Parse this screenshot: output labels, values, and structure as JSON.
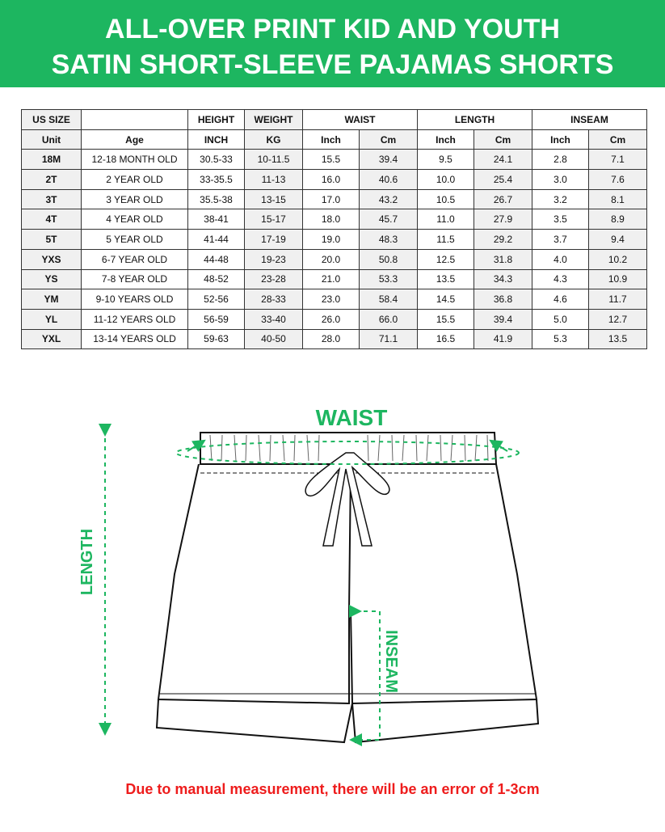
{
  "title": [
    "ALL-OVER PRINT KID AND YOUTH",
    "SATIN SHORT-SLEEVE PAJAMAS SHORTS"
  ],
  "table": {
    "header1": [
      "US SIZE",
      "",
      "HEIGHT",
      "WEIGHT",
      "WAIST",
      "LENGTH",
      "INSEAM"
    ],
    "header2": [
      "Unit",
      "Age",
      "INCH",
      "KG",
      "Inch",
      "Cm",
      "Inch",
      "Cm",
      "Inch",
      "Cm"
    ],
    "rows": [
      [
        "18M",
        "12-18 MONTH OLD",
        "30.5-33",
        "10-11.5",
        "15.5",
        "39.4",
        "9.5",
        "24.1",
        "2.8",
        "7.1"
      ],
      [
        "2T",
        "2 YEAR OLD",
        "33-35.5",
        "11-13",
        "16.0",
        "40.6",
        "10.0",
        "25.4",
        "3.0",
        "7.6"
      ],
      [
        "3T",
        "3 YEAR OLD",
        "35.5-38",
        "13-15",
        "17.0",
        "43.2",
        "10.5",
        "26.7",
        "3.2",
        "8.1"
      ],
      [
        "4T",
        "4 YEAR OLD",
        "38-41",
        "15-17",
        "18.0",
        "45.7",
        "11.0",
        "27.9",
        "3.5",
        "8.9"
      ],
      [
        "5T",
        "5 YEAR OLD",
        "41-44",
        "17-19",
        "19.0",
        "48.3",
        "11.5",
        "29.2",
        "3.7",
        "9.4"
      ],
      [
        "YXS",
        "6-7 YEAR OLD",
        "44-48",
        "19-23",
        "20.0",
        "50.8",
        "12.5",
        "31.8",
        "4.0",
        "10.2"
      ],
      [
        "YS",
        "7-8 YEAR OLD",
        "48-52",
        "23-28",
        "21.0",
        "53.3",
        "13.5",
        "34.3",
        "4.3",
        "10.9"
      ],
      [
        "YM",
        "9-10 YEARS OLD",
        "52-56",
        "28-33",
        "23.0",
        "58.4",
        "14.5",
        "36.8",
        "4.6",
        "11.7"
      ],
      [
        "YL",
        "11-12 YEARS OLD",
        "56-59",
        "33-40",
        "26.0",
        "66.0",
        "15.5",
        "39.4",
        "5.0",
        "12.7"
      ],
      [
        "YXL",
        "13-14 YEARS OLD",
        "59-63",
        "40-50",
        "28.0",
        "71.1",
        "16.5",
        "41.9",
        "5.3",
        "13.5"
      ]
    ]
  },
  "diagram": {
    "waist": "WAIST",
    "length": "LENGTH",
    "inseam": "INSEAM"
  },
  "note": "Due to manual measurement, there will be an error of 1-3cm",
  "colors": {
    "brand": "#1db660",
    "note": "#ee1c1c"
  }
}
